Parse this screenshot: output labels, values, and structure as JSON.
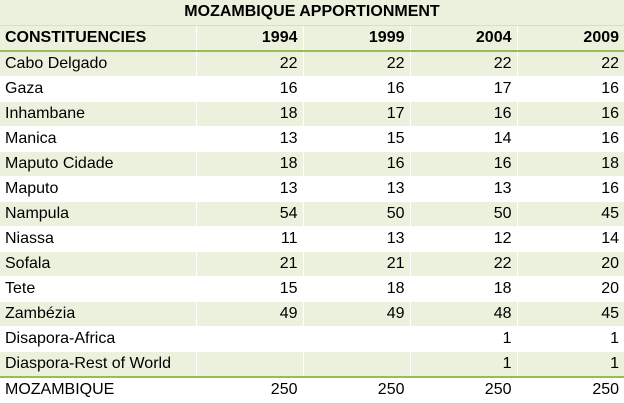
{
  "title": "MOZAMBIQUE APPORTIONMENT",
  "header": {
    "name_label": "CONSTITUENCIES",
    "years": [
      "1994",
      "1999",
      "2004",
      "2009"
    ]
  },
  "rows": [
    {
      "name": "Cabo Delgado",
      "values": [
        "22",
        "22",
        "22",
        "22"
      ]
    },
    {
      "name": "Gaza",
      "values": [
        "16",
        "16",
        "17",
        "16"
      ]
    },
    {
      "name": "Inhambane",
      "values": [
        "18",
        "17",
        "16",
        "16"
      ]
    },
    {
      "name": "Manica",
      "values": [
        "13",
        "15",
        "14",
        "16"
      ]
    },
    {
      "name": "Maputo Cidade",
      "values": [
        "18",
        "16",
        "16",
        "18"
      ]
    },
    {
      "name": "Maputo",
      "values": [
        "13",
        "13",
        "13",
        "16"
      ]
    },
    {
      "name": "Nampula",
      "values": [
        "54",
        "50",
        "50",
        "45"
      ]
    },
    {
      "name": "Niassa",
      "values": [
        "11",
        "13",
        "12",
        "14"
      ]
    },
    {
      "name": "Sofala",
      "values": [
        "21",
        "21",
        "22",
        "20"
      ]
    },
    {
      "name": "Tete",
      "values": [
        "15",
        "18",
        "18",
        "20"
      ]
    },
    {
      "name": "Zambézia",
      "values": [
        "49",
        "49",
        "48",
        "45"
      ]
    },
    {
      "name": "Disapora-Africa",
      "values": [
        "",
        "",
        "1",
        "1"
      ]
    },
    {
      "name": "Diaspora-Rest of World",
      "values": [
        "",
        "",
        "1",
        "1"
      ]
    }
  ],
  "total": {
    "name": "MOZAMBIQUE",
    "values": [
      "250",
      "250",
      "250",
      "250"
    ]
  },
  "colors": {
    "band": "#ebf1dd",
    "rule": "#9bbb59"
  }
}
